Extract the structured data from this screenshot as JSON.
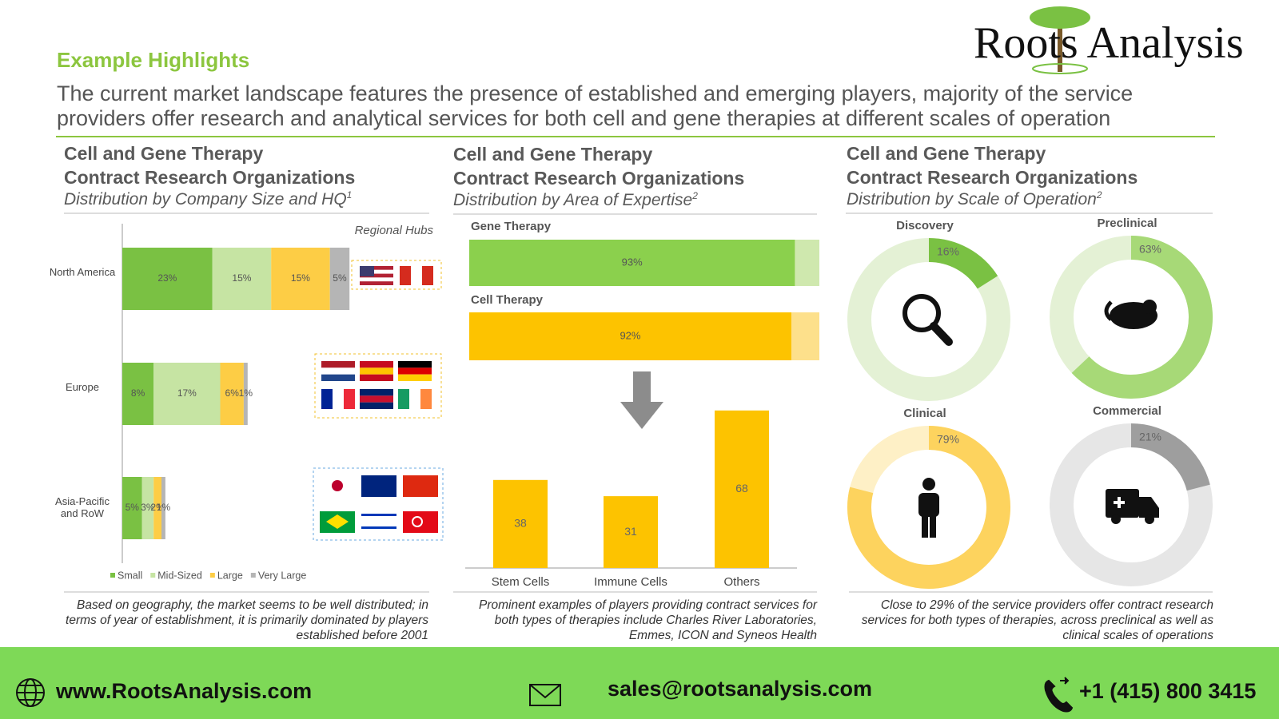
{
  "header": {
    "section": "Example Highlights",
    "headline": "The current market landscape features the presence of established and emerging players, majority of the service providers offer research and analytical services for both cell and gene therapies at different scales of operation",
    "brand": "Roots Analysis"
  },
  "chart_data": [
    {
      "type": "stacked-bar",
      "orientation": "horizontal",
      "title": "Cell and Gene Therapy",
      "subtitle": "Contract Research Organizations",
      "caption": "Distribution by Company Size and HQ",
      "caption_mark": "1",
      "annotation": "Regional Hubs",
      "categories": [
        "North America",
        "Europe",
        "Asia-Pacific and RoW"
      ],
      "series": [
        {
          "name": "Small",
          "color": "#7ac143",
          "values": [
            23,
            8,
            5
          ],
          "value_labels": [
            "23%",
            "8%",
            "5%"
          ]
        },
        {
          "name": "Mid-Sized",
          "color": "#c6e4a3",
          "values": [
            15,
            17,
            3
          ],
          "value_labels": [
            "15%",
            "17%",
            "3%"
          ]
        },
        {
          "name": "Large",
          "color": "#fdcd45",
          "values": [
            15,
            6,
            2
          ],
          "value_labels": [
            "15%",
            "6%",
            "2%"
          ]
        },
        {
          "name": "Very Large",
          "color": "#b5b5b5",
          "values": [
            5,
            1,
            1
          ],
          "value_labels": [
            "5%",
            "1%",
            "1%"
          ]
        }
      ],
      "legend": "bottom",
      "note": "Based on geography, the market seems to be well distributed; in terms of year of establishment, it is primarily dominated by players established before 2001"
    },
    {
      "type": "progress",
      "title": "Cell and Gene Therapy",
      "subtitle": "Contract Research Organizations",
      "caption": "Distribution by Area of Expertise",
      "caption_mark": "2",
      "categories": [
        "Gene Therapy",
        "Cell Therapy"
      ],
      "values": [
        93,
        92
      ],
      "value_labels": [
        "93%",
        "92%"
      ],
      "xlim": [
        0,
        100
      ],
      "colors": [
        "#8bd04d",
        "#fdc300"
      ],
      "track_colors": [
        "#cfe8ae",
        "#fde08b"
      ],
      "note": "Prominent examples of players providing contract services for both types of therapies include Charles River Laboratories, Emmes, ICON and Syneos Health"
    },
    {
      "type": "column",
      "categories": [
        "Stem Cells",
        "Immune Cells",
        "Others"
      ],
      "values": [
        38,
        31,
        68
      ],
      "color": "#fdc300"
    },
    {
      "type": "donut",
      "title": "Cell and Gene Therapy",
      "subtitle": "Contract Research Organizations",
      "caption": "Distribution by Scale of Operation",
      "caption_mark": "2",
      "categories": [
        "Discovery",
        "Preclinical",
        "Clinical",
        "Commercial"
      ],
      "values": [
        16,
        63,
        79,
        21
      ],
      "value_labels": [
        "16%",
        "63%",
        "79%",
        "21%"
      ],
      "xlim": [
        0,
        100
      ],
      "colors": [
        "#7ac143",
        "#a7d977",
        "#fdd35e",
        "#9e9e9e"
      ],
      "track_colors": [
        "#e4f1d5",
        "#e4f1d5",
        "#fef0c6",
        "#e6e6e6"
      ],
      "note": "Close to 29% of the service providers offer contract research services for both types of therapies, across preclinical as well as clinical scales of operations"
    }
  ],
  "footer": {
    "website": "www.RootsAnalysis.com",
    "email": "sales@rootsanalysis.com",
    "phone": "+1 (415) 800 3415"
  }
}
